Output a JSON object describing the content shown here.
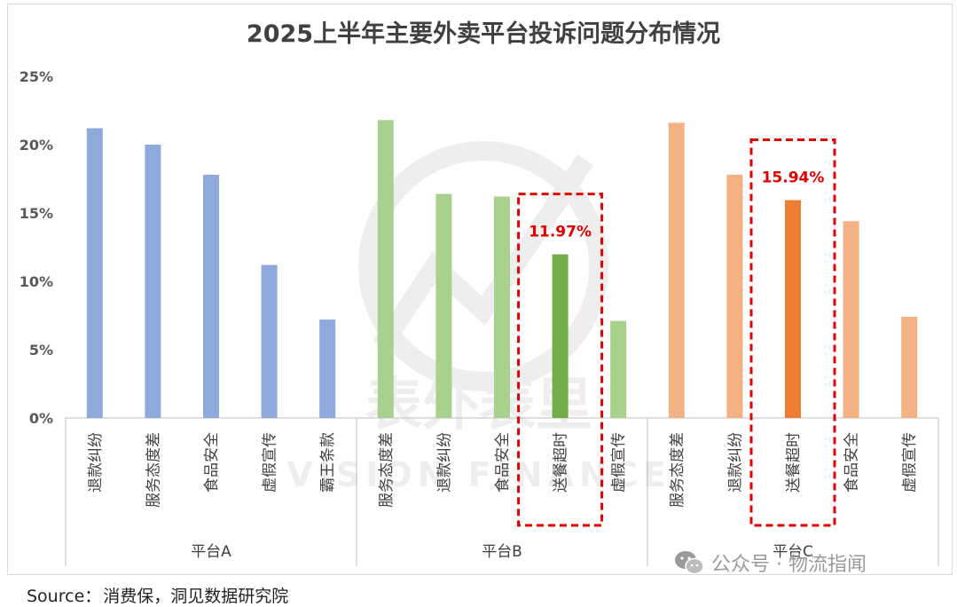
{
  "chart_data": {
    "type": "bar",
    "title": "2025上半年主要外卖平台投诉问题分布情况",
    "ylim": [
      0,
      25
    ],
    "yticks": [
      "0%",
      "5%",
      "10%",
      "15%",
      "20%",
      "25%"
    ],
    "ytick_values": [
      0,
      5,
      10,
      15,
      20,
      25
    ],
    "grid": false,
    "groups": [
      {
        "name": "平台A",
        "color": "#8eaadb",
        "categories": [
          "退款纠纷",
          "服务态度差",
          "食品安全",
          "虚假宣传",
          "霸王条款"
        ],
        "values": [
          21.2,
          20.0,
          17.8,
          11.2,
          7.2
        ]
      },
      {
        "name": "平台B",
        "color": "#a9d18e",
        "highlight_color": "#70ad47",
        "categories": [
          "服务态度差",
          "退款纠纷",
          "食品安全",
          "送餐超时",
          "虚假宣传"
        ],
        "values": [
          21.8,
          16.4,
          16.2,
          11.97,
          7.1
        ],
        "highlight_index": 3,
        "highlight_label": "11.97%"
      },
      {
        "name": "平台C",
        "color": "#f4b183",
        "highlight_color": "#ed7d31",
        "categories": [
          "服务态度差",
          "退款纠纷",
          "送餐超时",
          "食品安全",
          "虚假宣传"
        ],
        "values": [
          21.6,
          17.8,
          15.94,
          14.4,
          7.4
        ],
        "highlight_index": 2,
        "highlight_label": "15.94%"
      }
    ],
    "highlight_box_color": "#e00000"
  },
  "source": {
    "label": "Source：",
    "text": "消费保，洞见数据研究院"
  },
  "watermark": {
    "chinese": "表外表里",
    "english": "VISION FINANCE"
  },
  "wechat_badge": {
    "icon": "wechat-icon",
    "text": "公众号 · 物流指闻"
  }
}
